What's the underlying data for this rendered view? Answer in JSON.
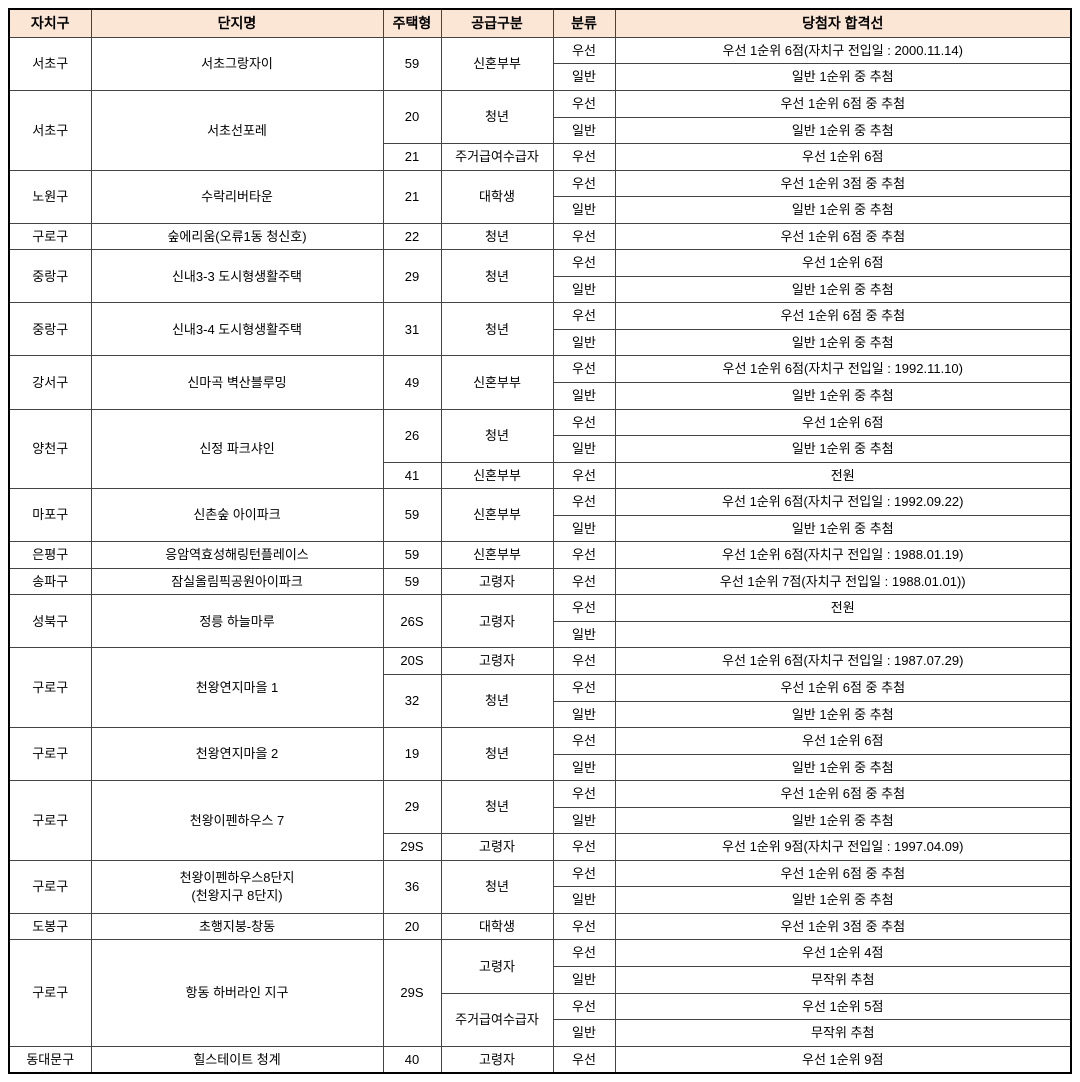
{
  "style": {
    "header_bg": "#fbe5d5",
    "border_color": "#444444",
    "outer_border_color": "#000000",
    "font_size_header": 14,
    "font_size_body": 13
  },
  "columns": [
    "자치구",
    "단지명",
    "주택형",
    "공급구분",
    "분류",
    "당첨자 합격선"
  ],
  "rows": [
    {
      "gu": "서초구",
      "gu_rows": 2,
      "complex": "서초그랑자이",
      "complex_rows": 2,
      "type": "59",
      "type_rows": 2,
      "supply": "신혼부부",
      "supply_rows": 2,
      "cls": "우선",
      "result": "우선 1순위 6점(자치구 전입일 : 2000.11.14)"
    },
    {
      "cls": "일반",
      "result": "일반 1순위 중 추첨"
    },
    {
      "gu": "서초구",
      "gu_rows": 3,
      "complex": "서초선포레",
      "complex_rows": 3,
      "type": "20",
      "type_rows": 2,
      "supply": "청년",
      "supply_rows": 2,
      "cls": "우선",
      "result": "우선 1순위 6점 중 추첨"
    },
    {
      "cls": "일반",
      "result": "일반 1순위 중 추첨"
    },
    {
      "type": "21",
      "type_rows": 1,
      "supply": "주거급여수급자",
      "supply_rows": 1,
      "cls": "우선",
      "result": "우선 1순위 6점"
    },
    {
      "gu": "노원구",
      "gu_rows": 2,
      "complex": "수락리버타운",
      "complex_rows": 2,
      "type": "21",
      "type_rows": 2,
      "supply": "대학생",
      "supply_rows": 2,
      "cls": "우선",
      "result": "우선 1순위 3점 중 추첨"
    },
    {
      "cls": "일반",
      "result": "일반 1순위 중 추첨"
    },
    {
      "gu": "구로구",
      "gu_rows": 1,
      "complex": "숲에리움(오류1동 청신호)",
      "complex_rows": 1,
      "type": "22",
      "type_rows": 1,
      "supply": "청년",
      "supply_rows": 1,
      "cls": "우선",
      "result": "우선 1순위 6점 중 추첨"
    },
    {
      "gu": "중랑구",
      "gu_rows": 2,
      "complex": "신내3-3 도시형생활주택",
      "complex_rows": 2,
      "type": "29",
      "type_rows": 2,
      "supply": "청년",
      "supply_rows": 2,
      "cls": "우선",
      "result": "우선 1순위 6점"
    },
    {
      "cls": "일반",
      "result": "일반 1순위 중 추첨"
    },
    {
      "gu": "중랑구",
      "gu_rows": 2,
      "complex": "신내3-4 도시형생활주택",
      "complex_rows": 2,
      "type": "31",
      "type_rows": 2,
      "supply": "청년",
      "supply_rows": 2,
      "cls": "우선",
      "result": "우선 1순위 6점 중 추첨"
    },
    {
      "cls": "일반",
      "result": "일반 1순위 중 추첨"
    },
    {
      "gu": "강서구",
      "gu_rows": 2,
      "complex": "신마곡 벽산블루밍",
      "complex_rows": 2,
      "type": "49",
      "type_rows": 2,
      "supply": "신혼부부",
      "supply_rows": 2,
      "cls": "우선",
      "result": "우선 1순위 6점(자치구 전입일 : 1992.11.10)"
    },
    {
      "cls": "일반",
      "result": "일반 1순위 중 추첨"
    },
    {
      "gu": "양천구",
      "gu_rows": 3,
      "complex": "신정 파크샤인",
      "complex_rows": 3,
      "type": "26",
      "type_rows": 2,
      "supply": "청년",
      "supply_rows": 2,
      "cls": "우선",
      "result": "우선 1순위 6점"
    },
    {
      "cls": "일반",
      "result": "일반 1순위 중 추첨"
    },
    {
      "type": "41",
      "type_rows": 1,
      "supply": "신혼부부",
      "supply_rows": 1,
      "cls": "우선",
      "result": "전원"
    },
    {
      "gu": "마포구",
      "gu_rows": 2,
      "complex": "신촌숲 아이파크",
      "complex_rows": 2,
      "type": "59",
      "type_rows": 2,
      "supply": "신혼부부",
      "supply_rows": 2,
      "cls": "우선",
      "result": "우선 1순위 6점(자치구 전입일 : 1992.09.22)"
    },
    {
      "cls": "일반",
      "result": "일반 1순위 중 추첨"
    },
    {
      "gu": "은평구",
      "gu_rows": 1,
      "complex": "응암역효성해링턴플레이스",
      "complex_rows": 1,
      "type": "59",
      "type_rows": 1,
      "supply": "신혼부부",
      "supply_rows": 1,
      "cls": "우선",
      "result": "우선 1순위 6점(자치구 전입일 : 1988.01.19)"
    },
    {
      "gu": "송파구",
      "gu_rows": 1,
      "complex": "잠실올림픽공원아이파크",
      "complex_rows": 1,
      "type": "59",
      "type_rows": 1,
      "supply": "고령자",
      "supply_rows": 1,
      "cls": "우선",
      "result": "우선 1순위 7점(자치구 전입일 : 1988.01.01))"
    },
    {
      "gu": "성북구",
      "gu_rows": 2,
      "complex": "정릉 하늘마루",
      "complex_rows": 2,
      "type": "26S",
      "type_rows": 2,
      "supply": "고령자",
      "supply_rows": 2,
      "cls": "우선",
      "result": "전원"
    },
    {
      "cls": "일반",
      "result": ""
    },
    {
      "gu": "구로구",
      "gu_rows": 3,
      "complex": "천왕연지마을 1",
      "complex_rows": 3,
      "type": "20S",
      "type_rows": 1,
      "supply": "고령자",
      "supply_rows": 1,
      "cls": "우선",
      "result": "우선 1순위 6점(자치구 전입일 : 1987.07.29)"
    },
    {
      "type": "32",
      "type_rows": 2,
      "supply": "청년",
      "supply_rows": 2,
      "cls": "우선",
      "result": "우선 1순위 6점 중 추첨"
    },
    {
      "cls": "일반",
      "result": "일반 1순위 중 추첨"
    },
    {
      "gu": "구로구",
      "gu_rows": 2,
      "complex": "천왕연지마을 2",
      "complex_rows": 2,
      "type": "19",
      "type_rows": 2,
      "supply": "청년",
      "supply_rows": 2,
      "cls": "우선",
      "result": "우선 1순위 6점"
    },
    {
      "cls": "일반",
      "result": "일반 1순위 중 추첨"
    },
    {
      "gu": "구로구",
      "gu_rows": 3,
      "complex": "천왕이펜하우스 7",
      "complex_rows": 3,
      "type": "29",
      "type_rows": 2,
      "supply": "청년",
      "supply_rows": 2,
      "cls": "우선",
      "result": "우선 1순위 6점 중 추첨"
    },
    {
      "cls": "일반",
      "result": "일반 1순위 중 추첨"
    },
    {
      "type": "29S",
      "type_rows": 1,
      "supply": "고령자",
      "supply_rows": 1,
      "cls": "우선",
      "result": "우선 1순위 9점(자치구 전입일 : 1997.04.09)"
    },
    {
      "gu": "구로구",
      "gu_rows": 2,
      "complex": "천왕이펜하우스8단지\n(천왕지구 8단지)",
      "complex_rows": 2,
      "type": "36",
      "type_rows": 2,
      "supply": "청년",
      "supply_rows": 2,
      "cls": "우선",
      "result": "우선 1순위 6점 중 추첨"
    },
    {
      "cls": "일반",
      "result": "일반 1순위 중 추첨"
    },
    {
      "gu": "도봉구",
      "gu_rows": 1,
      "complex": "초행지붕-창동",
      "complex_rows": 1,
      "type": "20",
      "type_rows": 1,
      "supply": "대학생",
      "supply_rows": 1,
      "cls": "우선",
      "result": "우선 1순위 3점 중 추첨"
    },
    {
      "gu": "구로구",
      "gu_rows": 4,
      "complex": "항동 하버라인 지구",
      "complex_rows": 4,
      "type": "29S",
      "type_rows": 4,
      "supply": "고령자",
      "supply_rows": 2,
      "cls": "우선",
      "result": "우선 1순위 4점"
    },
    {
      "cls": "일반",
      "result": "무작위 추첨"
    },
    {
      "supply": "주거급여수급자",
      "supply_rows": 2,
      "cls": "우선",
      "result": "우선 1순위 5점"
    },
    {
      "cls": "일반",
      "result": "무작위 추첨"
    },
    {
      "gu": "동대문구",
      "gu_rows": 1,
      "complex": "힐스테이트 청계",
      "complex_rows": 1,
      "type": "40",
      "type_rows": 1,
      "supply": "고령자",
      "supply_rows": 1,
      "cls": "우선",
      "result": "우선 1순위 9점"
    }
  ]
}
